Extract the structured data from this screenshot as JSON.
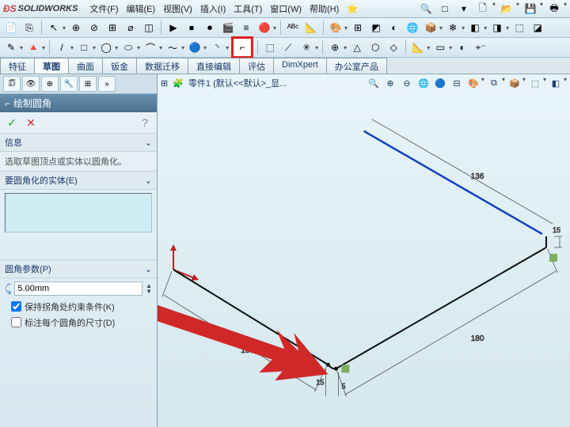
{
  "app": {
    "name": "SOLIDWORKS",
    "ds": "ƉS"
  },
  "menus": [
    {
      "label": "文件(F)"
    },
    {
      "label": "编辑(E)"
    },
    {
      "label": "视图(V)"
    },
    {
      "label": "插入(I)"
    },
    {
      "label": "工具(T)"
    },
    {
      "label": "窗口(W)"
    },
    {
      "label": "帮助(H)"
    }
  ],
  "quick_icons": [
    "🔍",
    "□",
    "🖘",
    "▾",
    "🗋",
    "▾",
    "📂",
    "▾",
    "💾",
    "▾",
    "🖶",
    "▾"
  ],
  "toolbar1": [
    "📄",
    "⎘",
    "|",
    "↖",
    "▾",
    "⊕",
    "⊘",
    "⊞",
    "⌀",
    "◫",
    "|",
    "▶",
    "⏹",
    "⏺",
    "🎬",
    "≡",
    "🔴",
    "▾",
    "|",
    "ᴬᴮᶜ",
    "📐",
    "|",
    "🎨",
    "▾",
    "⊞",
    "◩",
    "◐",
    "🌐",
    "📦",
    "▾",
    "❄",
    "▾",
    "◧",
    "▾",
    "◨",
    "▾",
    "⬚",
    "◪"
  ],
  "toolbar2": [
    "✎",
    "▾",
    "🔺",
    "▾",
    "|",
    "/",
    "▾",
    "□",
    "▾",
    "◯",
    "▾",
    "⬭",
    "▾",
    "⌒",
    "▾",
    "〜",
    "▾",
    "🔵",
    "▾",
    "◝",
    "▾",
    "⌐",
    "|",
    "⬚",
    "⟋",
    "✳",
    "▾",
    "|",
    "⊕",
    "▾",
    "△",
    "⬡",
    "◇",
    "|",
    "📐",
    "▾",
    "▭",
    "▾",
    "◐",
    "+⁻"
  ],
  "tool_labels": {
    "t1_0": "document-icon",
    "t2_fillet": "sketch-fillet-icon"
  },
  "tabs": [
    {
      "label": "特征"
    },
    {
      "label": "草图",
      "active": true
    },
    {
      "label": "曲面"
    },
    {
      "label": "钣金"
    },
    {
      "label": "数据迁移"
    },
    {
      "label": "直接编辑"
    },
    {
      "label": "评估"
    },
    {
      "label": "DimXpert"
    },
    {
      "label": "办公室产品"
    }
  ],
  "side_tabs": [
    "🗊",
    "👁",
    "⊕",
    "🔧",
    "⊞",
    "📋"
  ],
  "panel": {
    "title": "绘制圆角",
    "ok": "✓",
    "cancel": "✕",
    "help": "?"
  },
  "info": {
    "header": "信息",
    "text": "选取草图顶点或实体以圆角化。"
  },
  "entities": {
    "header": "要圆角化的实体(E)"
  },
  "params": {
    "header": "圆角参数(P)",
    "icon": "⤹",
    "value": "5.00mm",
    "keep_corner": "保持拐角处约束条件(K)",
    "label_each": "标注每个圆角的尺寸(D)"
  },
  "viewport": {
    "tree_icon": "⊞",
    "part_icon": "🧩",
    "part_label": "零件1  (默认<<默认>_显...",
    "icons": [
      "🔍",
      "⊕",
      "⊖",
      "🌐",
      "🔵",
      "⊟",
      "🎨",
      "▾",
      "⧉",
      "▾",
      "📦",
      "▾",
      "⬚",
      "▾",
      "◧",
      "▾"
    ],
    "dims": {
      "d1": "136",
      "d2": "136",
      "d3": "180",
      "d4": "15",
      "d5": "15",
      "d6": "5",
      "d7": "136"
    },
    "colors": {
      "blue_line": "#1040c0",
      "black_line": "#101010",
      "dim_line": "#404040",
      "origin": "#c02020",
      "arrow": "#d02828"
    }
  },
  "chevron": "⌄"
}
